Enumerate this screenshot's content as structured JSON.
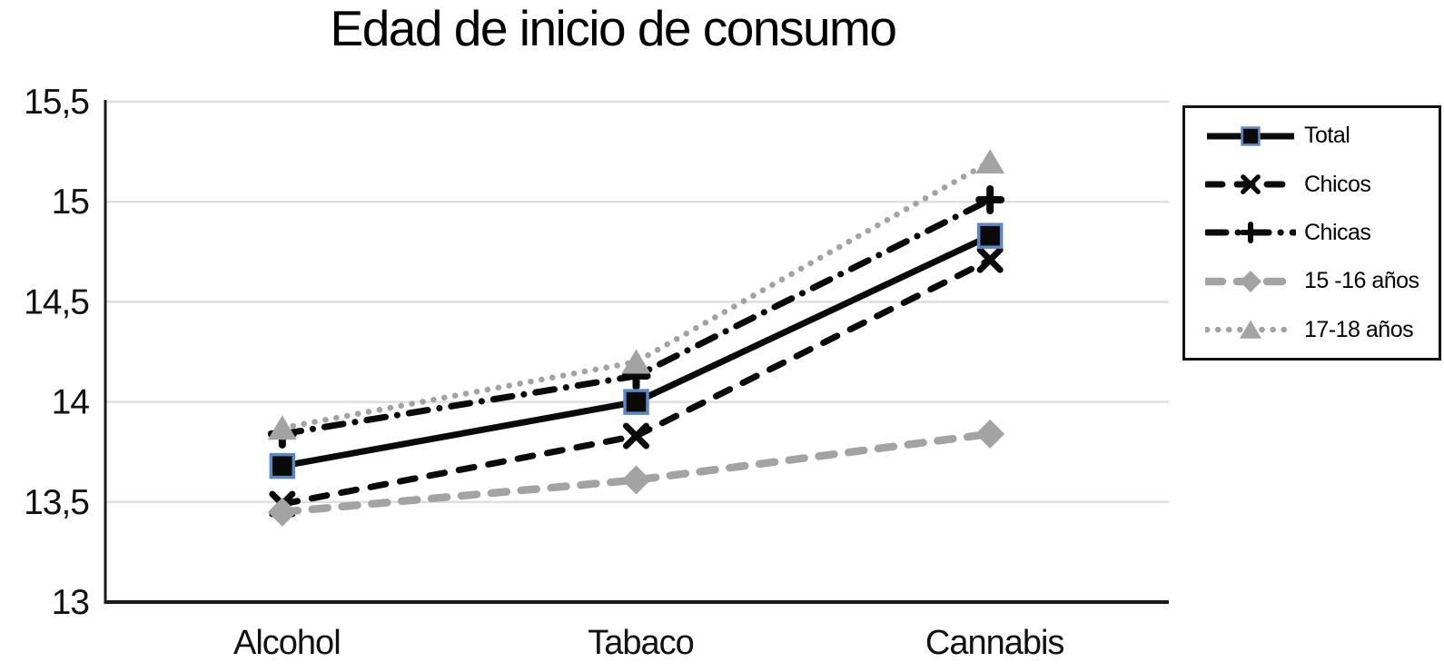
{
  "title": "Edad de inicio de consumo",
  "colors": {
    "background": "#ffffff",
    "grid": "#dfdfdf",
    "axis": "#1a1a1a",
    "black_series": "#0a0a0a",
    "gray_series": "#a3a3a3",
    "marker_blue_outline": "#5b87c5",
    "legend_border": "#111111"
  },
  "chart_data": {
    "type": "line",
    "title": "Edad de inicio de consumo",
    "categories": [
      "Alcohol",
      "Tabaco",
      "Cannabis"
    ],
    "xlabel": "",
    "ylabel": "",
    "ylim": [
      13,
      15.5
    ],
    "grid": "horizontal",
    "legend_position": "right",
    "y_ticks": [
      {
        "value": 15.5,
        "label": "15,5"
      },
      {
        "value": 15,
        "label": "15"
      },
      {
        "value": 14.5,
        "label": "14,5"
      },
      {
        "value": 14,
        "label": "14"
      },
      {
        "value": 13.5,
        "label": "13,5"
      },
      {
        "value": 13,
        "label": "13"
      }
    ],
    "series": [
      {
        "name": "Total",
        "values": [
          13.68,
          14.0,
          14.83
        ],
        "color": "#0a0a0a",
        "line": "solid",
        "marker": "square",
        "marker_outline": "#5b87c5"
      },
      {
        "name": "Chicos",
        "values": [
          13.49,
          13.83,
          14.71
        ],
        "color": "#0a0a0a",
        "line": "dashed",
        "marker": "x"
      },
      {
        "name": "Chicas",
        "values": [
          13.84,
          14.13,
          15.01
        ],
        "color": "#0a0a0a",
        "line": "dash-dot",
        "marker": "plus"
      },
      {
        "name": "15 -16 años",
        "values": [
          13.45,
          13.61,
          13.84
        ],
        "color": "#a3a3a3",
        "line": "dashed",
        "marker": "diamond"
      },
      {
        "name": "17-18 años",
        "values": [
          13.87,
          14.2,
          15.2
        ],
        "color": "#a3a3a3",
        "line": "dotted",
        "marker": "triangle"
      }
    ]
  }
}
